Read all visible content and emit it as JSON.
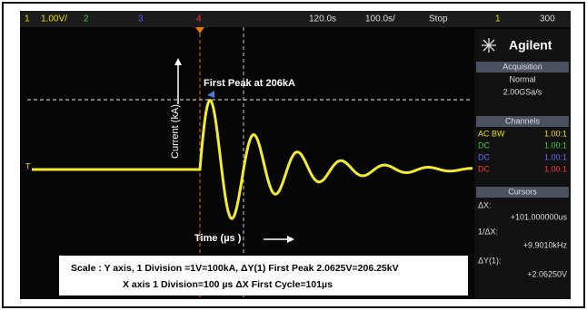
{
  "top_bar": {
    "items": [
      "1",
      "1.00V/",
      "2",
      "3",
      "4",
      "120.0s",
      "100.0s/",
      "Stop",
      "1",
      "300"
    ]
  },
  "side_panel": {
    "brand": "Agilent",
    "acquisition": {
      "header": "Acquisition",
      "mode": "Normal",
      "rate": "2.00GSa/s"
    },
    "channels": {
      "header": "Channels",
      "rows": [
        [
          "AC BW",
          "1.00:1"
        ],
        [
          "DC",
          "1.00:1"
        ],
        [
          "DC",
          "1.00:1"
        ],
        [
          "DC",
          "1.00:1"
        ]
      ]
    },
    "cursors": {
      "header": "Cursors",
      "rows": [
        [
          "ΔX:",
          "+101.000000us"
        ],
        [
          "1/ΔX:",
          "+9.9010kHz"
        ],
        [
          "ΔY(1):",
          "+2.06250V"
        ]
      ]
    }
  },
  "annotations": {
    "peak": "First Peak at 206kA",
    "y_label": "Current (kA)",
    "x_label": "Time (µs )"
  },
  "caption": {
    "line1": "Scale : Y axis, 1 Division =1V=100kA, ΔY(1) First Peak 2.0625V=206.25kV",
    "line2": "X axis 1 Division=100 µs  ΔX First Cycle=101µs"
  }
}
